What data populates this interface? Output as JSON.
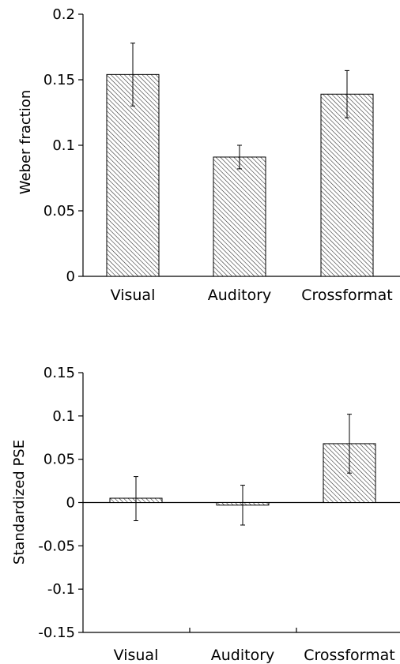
{
  "chart_data": [
    {
      "type": "bar",
      "categories": [
        "Visual",
        "Auditory",
        "Crossformat"
      ],
      "series": [
        {
          "values": [
            0.154,
            0.091,
            0.139
          ],
          "error_low": [
            0.13,
            0.082,
            0.121
          ],
          "error_high": [
            0.178,
            0.1,
            0.157
          ]
        }
      ],
      "ylabel": "Weber fraction",
      "xlabel": "",
      "ylim": [
        0,
        0.2
      ],
      "yticks": [
        "0",
        "0.05",
        "0.1",
        "0.15",
        "0.2"
      ],
      "ytick_values": [
        0,
        0.05,
        0.1,
        0.15,
        0.2
      ],
      "bar_fill": "hatched",
      "grid": false
    },
    {
      "type": "bar",
      "categories": [
        "Visual",
        "Auditory",
        "Crossformat"
      ],
      "series": [
        {
          "values": [
            0.005,
            -0.003,
            0.068
          ],
          "error_low": [
            -0.021,
            -0.026,
            0.034
          ],
          "error_high": [
            0.03,
            0.02,
            0.102
          ]
        }
      ],
      "ylabel": "Standardized PSE",
      "xlabel": "",
      "ylim": [
        -0.15,
        0.15
      ],
      "yticks": [
        "-0.15",
        "-0.1",
        "-0.05",
        "0",
        "0.05",
        "0.1",
        "0.15"
      ],
      "ytick_values": [
        -0.15,
        -0.1,
        -0.05,
        0,
        0.05,
        0.1,
        0.15
      ],
      "bar_fill": "hatched",
      "grid": false
    }
  ]
}
